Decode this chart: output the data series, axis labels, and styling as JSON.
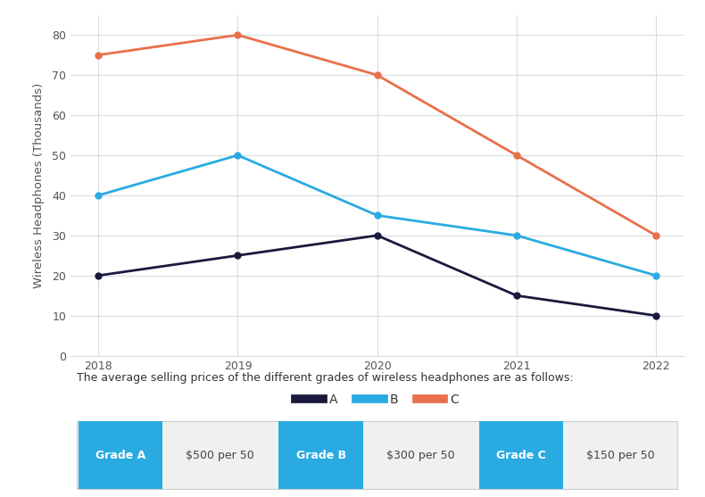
{
  "years": [
    2018,
    2019,
    2020,
    2021,
    2022
  ],
  "series_A": [
    20,
    25,
    30,
    15,
    10
  ],
  "series_B": [
    40,
    50,
    35,
    30,
    20
  ],
  "series_C": [
    75,
    80,
    70,
    50,
    30
  ],
  "color_A": "#1a1a3e",
  "color_B": "#29abe2",
  "color_C": "#e8704a",
  "ylabel": "Wireless Headphones (Thousands)",
  "ylim": [
    0,
    85
  ],
  "yticks": [
    0,
    10,
    20,
    30,
    40,
    50,
    60,
    70,
    80
  ],
  "legend_labels": [
    "A",
    "B",
    "C"
  ],
  "background_color": "#ffffff",
  "plot_bg_color": "#ffffff",
  "grid_color": "#d8dce0",
  "footer_text": "The average selling prices of the different grades of wireless headphones are as follows:",
  "grade_labels": [
    "Grade A",
    "Grade B",
    "Grade C"
  ],
  "grade_prices": [
    "$500 per 50",
    "$300 per 50",
    "$150 per 50"
  ],
  "grade_button_color": "#29abe2",
  "grade_button_text_color": "#ffffff",
  "grade_price_text_color": "#444444",
  "marker_size": 5,
  "line_width": 2.0,
  "axis_fontsize": 9.5,
  "tick_fontsize": 9,
  "legend_fontsize": 10,
  "footer_fontsize": 9,
  "grade_fontsize": 9,
  "table_border_color": "#cccccc"
}
